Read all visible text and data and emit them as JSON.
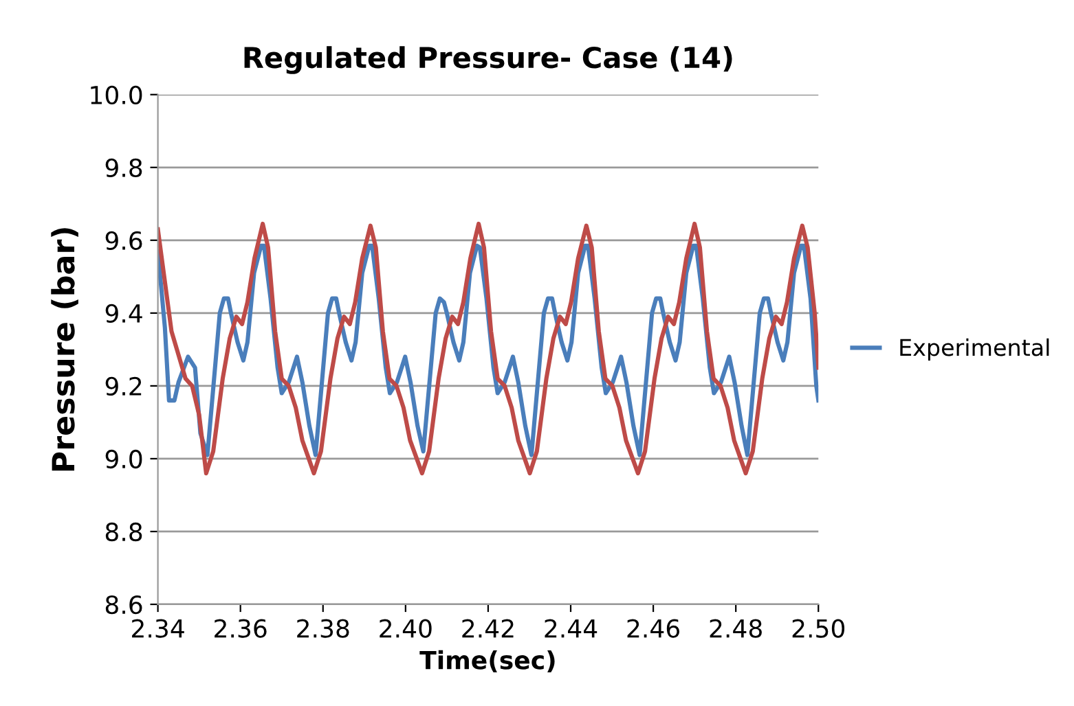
{
  "chart_data": {
    "type": "line",
    "title": "Regulated Pressure- Case (14)",
    "xlabel": "Time(sec)",
    "ylabel": "Pressure (bar)",
    "xlim": [
      2.34,
      2.5
    ],
    "xticks": [
      {
        "value": 2.34,
        "label": "2.34"
      },
      {
        "value": 2.36,
        "label": "2.36"
      },
      {
        "value": 2.38,
        "label": "2.38"
      },
      {
        "value": 2.4,
        "label": "2.40"
      },
      {
        "value": 2.42,
        "label": "2.42"
      },
      {
        "value": 2.44,
        "label": "2.44"
      },
      {
        "value": 2.46,
        "label": "2.46"
      },
      {
        "value": 2.48,
        "label": "2.48"
      },
      {
        "value": 2.5,
        "label": "2.50"
      }
    ],
    "ylim": [
      8.6,
      10.0
    ],
    "yticks": [
      {
        "value": 8.6,
        "label": "8.6"
      },
      {
        "value": 8.8,
        "label": "8.8"
      },
      {
        "value": 9.0,
        "label": "9.0"
      },
      {
        "value": 9.2,
        "label": "9.2"
      },
      {
        "value": 9.4,
        "label": "9.4"
      },
      {
        "value": 9.6,
        "label": "9.6"
      },
      {
        "value": 9.8,
        "label": "9.8"
      },
      {
        "value": 10.0,
        "label": "10.0"
      }
    ],
    "grid": "y",
    "legend": "right",
    "marker": "none",
    "line_style": "solid",
    "series": [
      {
        "name": "Experimental",
        "color": "#4a7ebb",
        "x": [
          2.34,
          2.3417,
          2.3427,
          2.344,
          2.345,
          2.3473,
          2.349,
          2.3503,
          2.352,
          2.355,
          2.356,
          2.357,
          2.3577,
          2.3593,
          2.3607,
          2.3617,
          2.3633,
          2.365,
          2.3657,
          2.3673,
          2.369,
          2.37,
          2.3717,
          2.3737,
          2.375,
          2.3767,
          2.3782,
          2.3812,
          2.3822,
          2.3832,
          2.3839,
          2.3855,
          2.3869,
          2.3879,
          2.3895,
          2.3912,
          2.3919,
          2.3935,
          2.3952,
          2.3962,
          2.3979,
          2.3999,
          2.4012,
          2.4029,
          2.4043,
          2.4073,
          2.4083,
          2.4093,
          2.41,
          2.4116,
          2.413,
          2.414,
          2.4156,
          2.4173,
          2.418,
          2.4196,
          2.4213,
          2.4223,
          2.424,
          2.426,
          2.4273,
          2.429,
          2.4305,
          2.4335,
          2.4345,
          2.4355,
          2.4362,
          2.4378,
          2.4392,
          2.4402,
          2.4418,
          2.4435,
          2.4442,
          2.4458,
          2.4475,
          2.4485,
          2.4502,
          2.4522,
          2.4535,
          2.4552,
          2.4567,
          2.4597,
          2.4607,
          2.4617,
          2.4624,
          2.464,
          2.4654,
          2.4664,
          2.468,
          2.4697,
          2.4704,
          2.472,
          2.4737,
          2.4747,
          2.4764,
          2.4784,
          2.4797,
          2.4814,
          2.4828,
          2.4858,
          2.4868,
          2.4878,
          2.4885,
          2.4901,
          2.4915,
          2.4925,
          2.4941,
          2.4958,
          2.4965,
          2.4981,
          2.4995,
          2.5
        ],
        "values": [
          9.57,
          9.36,
          9.16,
          9.16,
          9.21,
          9.28,
          9.25,
          9.07,
          9.01,
          9.4,
          9.44,
          9.44,
          9.4,
          9.32,
          9.27,
          9.32,
          9.51,
          9.585,
          9.585,
          9.44,
          9.25,
          9.18,
          9.21,
          9.28,
          9.21,
          9.09,
          9.01,
          9.4,
          9.44,
          9.44,
          9.4,
          9.32,
          9.27,
          9.32,
          9.51,
          9.585,
          9.585,
          9.44,
          9.25,
          9.18,
          9.21,
          9.28,
          9.21,
          9.09,
          9.02,
          9.4,
          9.44,
          9.43,
          9.4,
          9.32,
          9.27,
          9.32,
          9.51,
          9.585,
          9.58,
          9.44,
          9.25,
          9.18,
          9.21,
          9.28,
          9.21,
          9.09,
          9.01,
          9.4,
          9.44,
          9.44,
          9.4,
          9.32,
          9.27,
          9.32,
          9.51,
          9.585,
          9.585,
          9.44,
          9.25,
          9.18,
          9.21,
          9.28,
          9.21,
          9.09,
          9.01,
          9.4,
          9.44,
          9.44,
          9.4,
          9.32,
          9.27,
          9.32,
          9.51,
          9.585,
          9.585,
          9.44,
          9.25,
          9.18,
          9.21,
          9.28,
          9.21,
          9.09,
          9.01,
          9.4,
          9.44,
          9.44,
          9.4,
          9.32,
          9.27,
          9.32,
          9.51,
          9.585,
          9.585,
          9.44,
          9.2,
          9.16
        ]
      },
      {
        "color": "#be4b48",
        "x": [
          2.34,
          2.3433,
          2.3467,
          2.3483,
          2.35,
          2.3517,
          2.3534,
          2.3557,
          2.3574,
          2.359,
          2.3604,
          2.3617,
          2.3634,
          2.3654,
          2.3667,
          2.3684,
          2.37,
          2.3717,
          2.3734,
          2.375,
          2.3778,
          2.3795,
          2.3818,
          2.3835,
          2.3851,
          2.3865,
          2.3878,
          2.3895,
          2.3915,
          2.3928,
          2.3945,
          2.3961,
          2.3978,
          2.3995,
          2.4011,
          2.404,
          2.4057,
          2.408,
          2.4097,
          2.4113,
          2.4127,
          2.414,
          2.4157,
          2.4177,
          2.419,
          2.4207,
          2.4223,
          2.424,
          2.4257,
          2.4273,
          2.4301,
          2.4318,
          2.4341,
          2.4358,
          2.4374,
          2.4388,
          2.4401,
          2.4418,
          2.4438,
          2.4451,
          2.4468,
          2.4484,
          2.4501,
          2.4518,
          2.4534,
          2.4563,
          2.458,
          2.4603,
          2.462,
          2.4636,
          2.465,
          2.4663,
          2.468,
          2.47,
          2.4713,
          2.473,
          2.4746,
          2.4763,
          2.478,
          2.4796,
          2.4824,
          2.4841,
          2.4864,
          2.4881,
          2.4897,
          2.4911,
          2.4924,
          2.4941,
          2.4961,
          2.4974,
          2.4991,
          2.5
        ],
        "values": [
          9.63,
          9.35,
          9.22,
          9.2,
          9.12,
          8.96,
          9.02,
          9.22,
          9.33,
          9.39,
          9.37,
          9.43,
          9.55,
          9.645,
          9.58,
          9.35,
          9.22,
          9.2,
          9.14,
          9.05,
          8.96,
          9.02,
          9.22,
          9.33,
          9.39,
          9.37,
          9.43,
          9.55,
          9.64,
          9.58,
          9.35,
          9.22,
          9.2,
          9.14,
          9.05,
          8.96,
          9.02,
          9.22,
          9.33,
          9.39,
          9.37,
          9.43,
          9.55,
          9.645,
          9.58,
          9.35,
          9.22,
          9.2,
          9.14,
          9.05,
          8.96,
          9.02,
          9.22,
          9.33,
          9.39,
          9.37,
          9.43,
          9.55,
          9.64,
          9.58,
          9.35,
          9.22,
          9.2,
          9.14,
          9.05,
          8.96,
          9.02,
          9.22,
          9.33,
          9.39,
          9.37,
          9.43,
          9.55,
          9.645,
          9.58,
          9.35,
          9.22,
          9.2,
          9.14,
          9.05,
          8.96,
          9.02,
          9.22,
          9.33,
          9.39,
          9.37,
          9.43,
          9.55,
          9.64,
          9.58,
          9.4,
          9.25
        ]
      }
    ]
  }
}
